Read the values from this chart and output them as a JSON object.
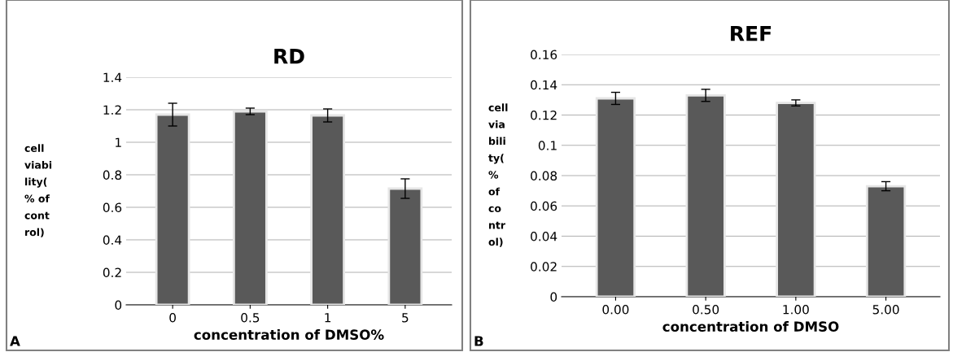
{
  "chart_data": [
    {
      "type": "bar",
      "title": "RD",
      "xlabel": "concentration of DMSO%",
      "ylabel": "cell\nviabi\nlity(\n% of\ncont\nrol)",
      "categories": [
        "0",
        "0.5",
        "1",
        "5"
      ],
      "series": [
        {
          "color": "#595959",
          "values": [
            1.17,
            1.19,
            1.165,
            0.715
          ],
          "errors": [
            0.07,
            0.02,
            0.04,
            0.06
          ]
        }
      ],
      "ylim": [
        0,
        1.4
      ],
      "yticks": [
        0,
        0.2,
        0.4,
        0.6,
        0.8,
        1,
        1.2,
        1.4
      ],
      "grid": "y",
      "legend": false,
      "annotations": [
        "A"
      ]
    },
    {
      "type": "bar",
      "title": "REF",
      "xlabel": "concentration of DMSO",
      "ylabel": "cell\nvia\nbili\nty(\n%\nof\nco\nntr\nol)",
      "categories": [
        "0.00",
        "0.50",
        "1.00",
        "5.00"
      ],
      "series": [
        {
          "color": "#595959",
          "values": [
            0.131,
            0.133,
            0.128,
            0.073
          ],
          "errors": [
            0.004,
            0.004,
            0.002,
            0.003
          ]
        }
      ],
      "ylim": [
        0,
        0.16
      ],
      "yticks": [
        0,
        0.02,
        0.04,
        0.06,
        0.08,
        0.1,
        0.12,
        0.14,
        0.16
      ],
      "grid": "y",
      "legend": false,
      "annotations": [
        "B"
      ]
    }
  ]
}
